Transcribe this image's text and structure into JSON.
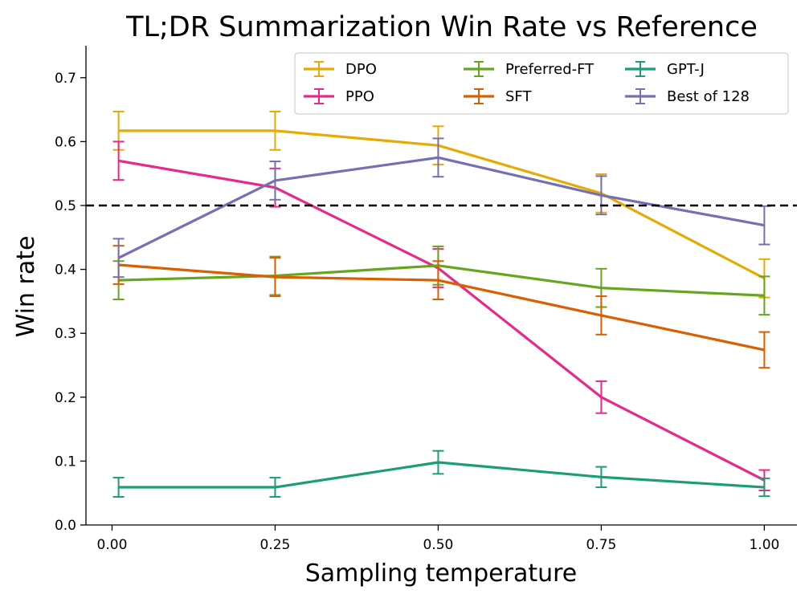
{
  "chart_data": {
    "type": "line",
    "title": "TL;DR Summarization Win Rate vs Reference",
    "xlabel": "Sampling temperature",
    "ylabel": "Win rate",
    "xlim": [
      -0.04,
      1.05
    ],
    "ylim": [
      0.0,
      0.75
    ],
    "xticks": [
      0.0,
      0.25,
      0.5,
      0.75,
      1.0
    ],
    "xtick_labels": [
      "0.00",
      "0.25",
      "0.50",
      "0.75",
      "1.00"
    ],
    "yticks": [
      0.0,
      0.1,
      0.2,
      0.3,
      0.4,
      0.5,
      0.6,
      0.7
    ],
    "ytick_labels": [
      "0.0",
      "0.1",
      "0.2",
      "0.3",
      "0.4",
      "0.5",
      "0.6",
      "0.7"
    ],
    "reference_line": {
      "y": 0.5,
      "style": "dashed",
      "color": "#000000"
    },
    "legend": {
      "position": "top-right",
      "columns": 3
    },
    "grid": false,
    "series": [
      {
        "name": "DPO",
        "color": "#e6ab02",
        "x": [
          0.01,
          0.25,
          0.5,
          0.75,
          1.0
        ],
        "y": [
          0.617,
          0.617,
          0.594,
          0.519,
          0.386
        ],
        "err": [
          0.03,
          0.03,
          0.03,
          0.03,
          0.03
        ]
      },
      {
        "name": "PPO",
        "color": "#e7298a",
        "x": [
          0.01,
          0.25,
          0.5,
          0.75,
          1.0
        ],
        "y": [
          0.57,
          0.528,
          0.402,
          0.2,
          0.07
        ],
        "err": [
          0.03,
          0.03,
          0.03,
          0.025,
          0.016
        ]
      },
      {
        "name": "Preferred-FT",
        "color": "#66a61e",
        "x": [
          0.01,
          0.25,
          0.5,
          0.75,
          1.0
        ],
        "y": [
          0.383,
          0.39,
          0.406,
          0.371,
          0.359
        ],
        "err": [
          0.03,
          0.03,
          0.03,
          0.03,
          0.03
        ]
      },
      {
        "name": "SFT",
        "color": "#d95f02",
        "x": [
          0.01,
          0.25,
          0.5,
          0.75,
          1.0
        ],
        "y": [
          0.407,
          0.388,
          0.383,
          0.328,
          0.274
        ],
        "err": [
          0.03,
          0.03,
          0.03,
          0.03,
          0.028
        ]
      },
      {
        "name": "GPT-J",
        "color": "#1b9e77",
        "x": [
          0.01,
          0.25,
          0.5,
          0.75,
          1.0
        ],
        "y": [
          0.059,
          0.059,
          0.098,
          0.075,
          0.059
        ],
        "err": [
          0.015,
          0.015,
          0.018,
          0.016,
          0.014
        ]
      },
      {
        "name": "Best of 128",
        "color": "#7570b3",
        "x": [
          0.01,
          0.25,
          0.5,
          0.75,
          1.0
        ],
        "y": [
          0.418,
          0.539,
          0.575,
          0.516,
          0.469
        ],
        "err": [
          0.03,
          0.03,
          0.03,
          0.03,
          0.03
        ]
      }
    ]
  }
}
